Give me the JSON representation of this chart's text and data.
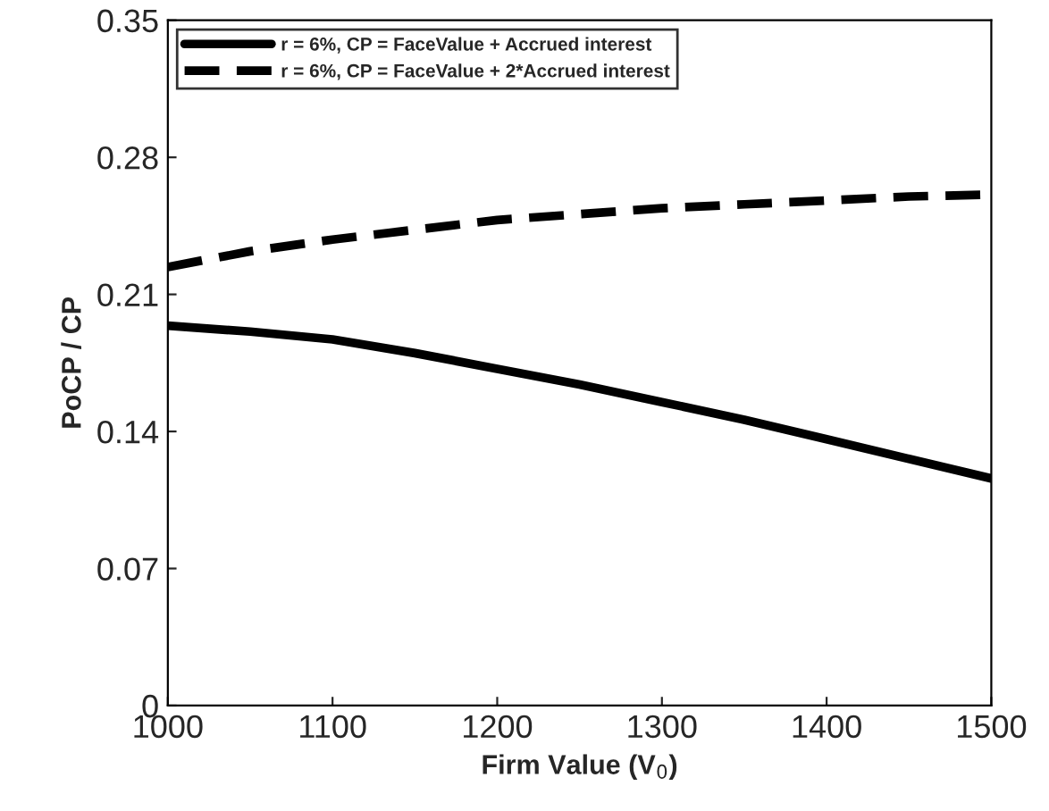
{
  "chart_data": {
    "type": "line",
    "xlabel": "Firm Value (V$_{0}$)",
    "ylabel": "PoCP / CP",
    "series": [
      {
        "name": "r = 6%, CP = FaceValue + Accrued interest",
        "color": "#000000",
        "line_style": "solid",
        "x": [
          1000,
          1050,
          1100,
          1150,
          1200,
          1250,
          1300,
          1350,
          1400,
          1450,
          1500
        ],
        "values": [
          0.194,
          0.191,
          0.187,
          0.18,
          0.172,
          0.164,
          0.155,
          0.146,
          0.136,
          0.126,
          0.116
        ]
      },
      {
        "name": "r = 6%, CP = FaceValue + 2*Accrued interest",
        "color": "#000000",
        "line_style": "dashed",
        "x": [
          1000,
          1050,
          1100,
          1150,
          1200,
          1250,
          1300,
          1350,
          1400,
          1450,
          1500
        ],
        "values": [
          0.224,
          0.232,
          0.238,
          0.243,
          0.248,
          0.251,
          0.254,
          0.256,
          0.258,
          0.26,
          0.261
        ]
      }
    ],
    "xlim": [
      1000,
      1500
    ],
    "xticks": [
      1000,
      1100,
      1200,
      1300,
      1400,
      1500
    ],
    "ylim": [
      0,
      0.35
    ],
    "yticks": [
      0,
      0.07,
      0.14,
      0.21,
      0.28,
      0.35
    ],
    "legend": "top left",
    "grid": false,
    "marker": "none"
  }
}
